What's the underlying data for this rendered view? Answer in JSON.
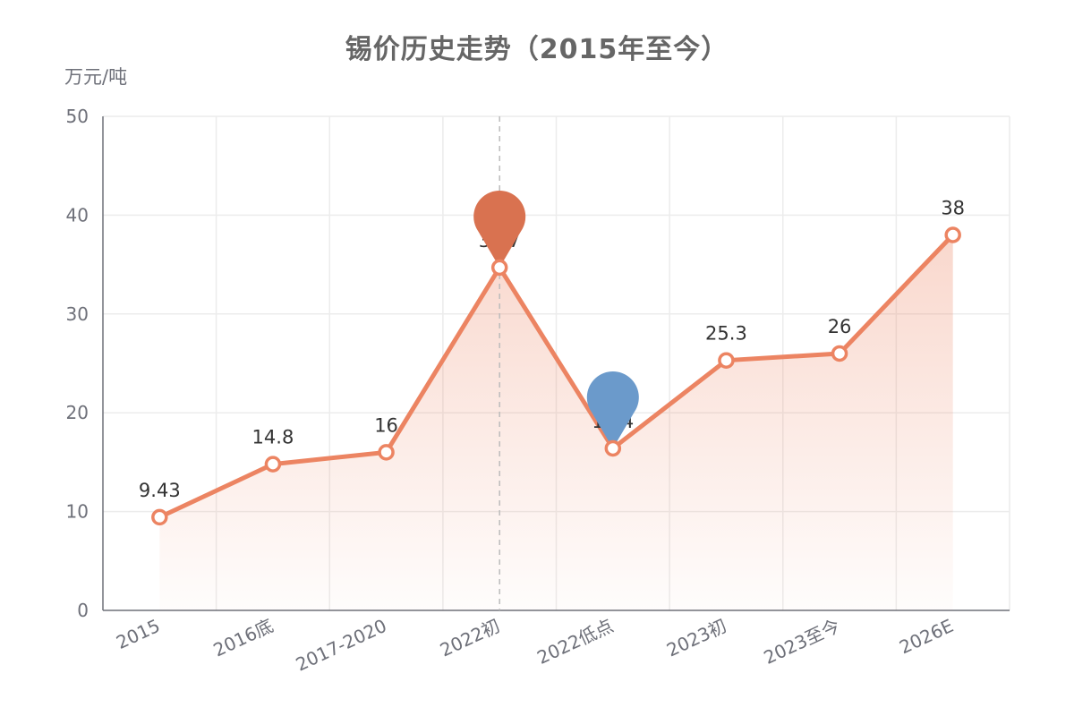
{
  "chart_data": {
    "type": "line",
    "title": "锡价历史走势（2015年至今）",
    "ylabel": "万元/吨",
    "xlabel": "",
    "categories": [
      "2015",
      "2016底",
      "2017-2020",
      "2022初",
      "2022低点",
      "2023初",
      "2023至今",
      "2026E"
    ],
    "series": [
      {
        "values": [
          9.43,
          14.8,
          16,
          34.7,
          16.4,
          25.3,
          26,
          38
        ],
        "data_labels": [
          "9.43",
          "14.8",
          "16",
          "34.7",
          "16.4",
          "25.3",
          "26",
          "38"
        ]
      }
    ],
    "ylim": [
      0,
      50
    ],
    "yticks": [
      "0",
      "10",
      "20",
      "30",
      "40",
      "50"
    ],
    "grid": true,
    "line_color": "#ec8462",
    "area_fill": true,
    "mark_points": [
      {
        "type": "max",
        "index": 3,
        "color": "#d97250"
      },
      {
        "type": "min",
        "index": 4,
        "color": "#6b9acb"
      }
    ],
    "mark_line": {
      "type": "vertical",
      "index": 3
    }
  }
}
